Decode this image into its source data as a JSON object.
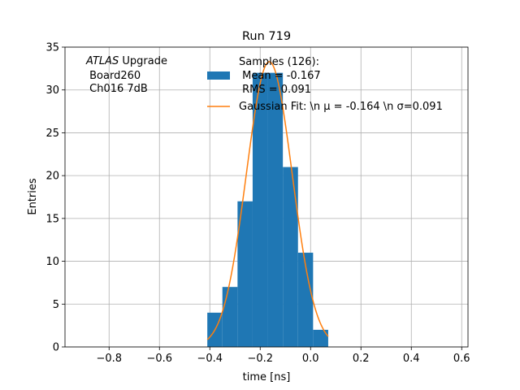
{
  "chart_data": {
    "type": "bar",
    "title": "Run 719",
    "xlabel": "time [ns]",
    "ylabel": "Entries",
    "xlim": [
      -0.975,
      0.625
    ],
    "ylim": [
      0,
      35
    ],
    "xticks": [
      -0.8,
      -0.6,
      -0.4,
      -0.2,
      0.0,
      0.2,
      0.4,
      0.6
    ],
    "xtick_labels": [
      "−0.8",
      "−0.6",
      "−0.4",
      "−0.2",
      "0.0",
      "0.2",
      "0.4",
      "0.6"
    ],
    "yticks": [
      0,
      5,
      10,
      15,
      20,
      25,
      30,
      35
    ],
    "ytick_labels": [
      "0",
      "5",
      "10",
      "15",
      "20",
      "25",
      "30",
      "35"
    ],
    "grid": true,
    "bin_edges": [
      -0.41,
      -0.35,
      -0.29,
      -0.23,
      -0.17,
      -0.11,
      -0.05,
      0.01,
      0.07
    ],
    "values": [
      4,
      7,
      17,
      32,
      32,
      21,
      11,
      2
    ],
    "gaussian_fit": {
      "mu": -0.164,
      "sigma": 0.091,
      "amplitude": 33.3,
      "x_range": [
        -0.41,
        0.07
      ]
    },
    "annotation": {
      "italic": "ATLAS",
      "rest": " Upgrade",
      "line2": " Board260",
      "line3": " Ch016 7dB"
    },
    "legend": {
      "position": "upper-right",
      "hist_lines": [
        "Samples (126):",
        " Mean = -0.167",
        " RMS = 0.091"
      ],
      "fit_label": "Gaussian Fit: \\n μ = -0.164 \\n σ=0.091"
    },
    "colors": {
      "hist": "#1f77b4",
      "fit": "#ff7f0e",
      "grid": "#b0b0b0"
    }
  }
}
